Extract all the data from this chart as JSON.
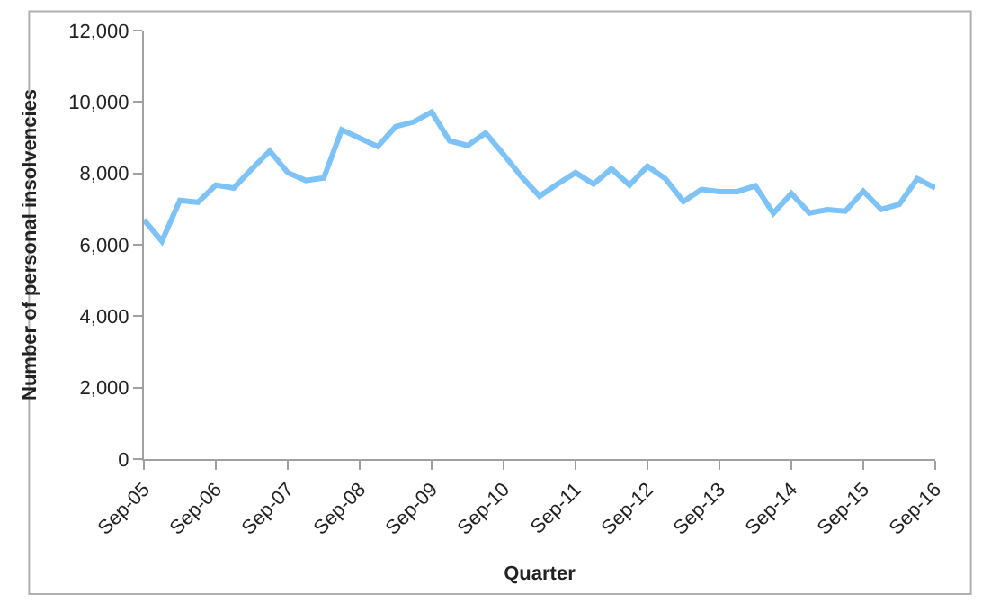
{
  "chart_data": {
    "type": "line",
    "xlabel": "Quarter",
    "ylabel": "Number of personal insolvencies",
    "categories": [
      "Sep-05",
      null,
      null,
      null,
      "Sep-06",
      null,
      null,
      null,
      "Sep-07",
      null,
      null,
      null,
      "Sep-08",
      null,
      null,
      null,
      "Sep-09",
      null,
      null,
      null,
      "Sep-10",
      null,
      null,
      null,
      "Sep-11",
      null,
      null,
      null,
      "Sep-12",
      null,
      null,
      null,
      "Sep-13",
      null,
      null,
      null,
      "Sep-14",
      null,
      null,
      null,
      "Sep-15",
      null,
      null,
      null,
      "Sep-16"
    ],
    "series": [
      {
        "color": "#7dc3f7",
        "values": [
          6700,
          6100,
          7240,
          7190,
          7670,
          7590,
          8120,
          8630,
          8020,
          7800,
          7870,
          9220,
          8990,
          8750,
          9310,
          9440,
          9720,
          8910,
          8780,
          9130,
          8530,
          7900,
          7360,
          7700,
          8020,
          7700,
          8130,
          7670,
          8200,
          7850,
          7210,
          7550,
          7490,
          7490,
          7650,
          6880,
          7440,
          6890,
          6980,
          6940,
          7500,
          6990,
          7130,
          7850,
          7590
        ]
      }
    ],
    "ylim": [
      0,
      12000
    ],
    "yticks": [
      {
        "value": 0,
        "label": "0"
      },
      {
        "value": 2000,
        "label": "2,000"
      },
      {
        "value": 4000,
        "label": "4,000"
      },
      {
        "value": 6000,
        "label": "6,000"
      },
      {
        "value": 8000,
        "label": "8,000"
      },
      {
        "value": 10000,
        "label": "10,000"
      },
      {
        "value": 12000,
        "label": "12,000"
      }
    ],
    "legend": false,
    "marker": "none",
    "line_style": "solid"
  }
}
